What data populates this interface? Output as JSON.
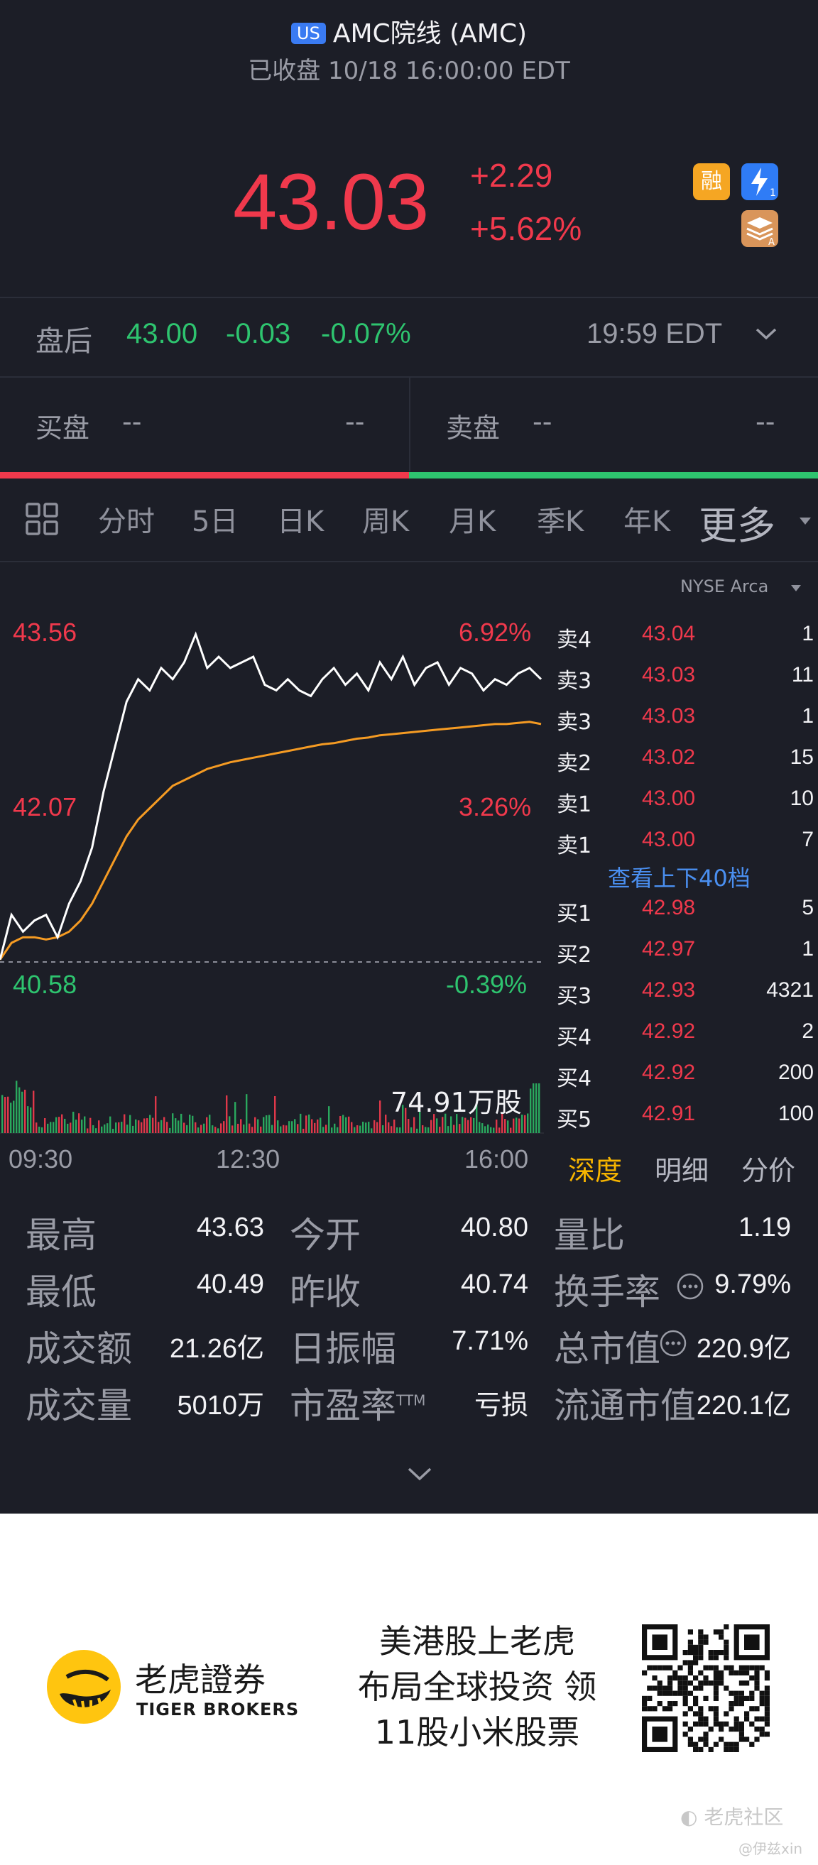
{
  "header": {
    "market_badge": "US",
    "title": "AMC院线 (AMC)",
    "status": "已收盘 10/18 16:00:00 EDT"
  },
  "quote": {
    "price": "43.03",
    "change": "+2.29",
    "change_pct": "+5.62%",
    "icons": [
      {
        "label": "融",
        "name": "margin-icon",
        "color": "#f5a623"
      },
      {
        "label": "⚡",
        "name": "lightning-level1-icon",
        "color": "#2f7cf6"
      },
      {
        "label": "≋",
        "name": "layers-a-icon",
        "color": "#d9955a"
      }
    ]
  },
  "after_hours": {
    "label": "盘后",
    "price": "43.00",
    "change": "-0.03",
    "change_pct": "-0.07%",
    "time": "19:59 EDT"
  },
  "bid_ask": {
    "bid_label": "买盘",
    "bid_left": "--",
    "bid_right": "--",
    "ask_label": "卖盘",
    "ask_left": "--",
    "ask_right": "--",
    "bid_ratio": 0.5
  },
  "tabs": {
    "items": [
      "分时",
      "5日",
      "日K",
      "周K",
      "月K",
      "季K",
      "年K"
    ],
    "active": "分时",
    "more": "更多"
  },
  "chart": {
    "exchange": "NYSE Arca",
    "y_high": "43.56",
    "y_high_pct": "6.92%",
    "y_mid": "42.07",
    "y_mid_pct": "3.26%",
    "y_low": "40.58",
    "y_low_pct": "-0.39%",
    "volume_label": "74.91万股",
    "times": [
      "09:30",
      "12:30",
      "16:00"
    ]
  },
  "chart_data": {
    "type": "line",
    "xlabel": "",
    "ylabel": "",
    "x_ticks": [
      "09:30",
      "12:30",
      "16:00"
    ],
    "ylim": [
      40.58,
      43.56
    ],
    "prev_close": 40.74,
    "series": [
      {
        "values": [
          40.6,
          41.0,
          40.85,
          40.95,
          41.0,
          40.8,
          41.1,
          41.3,
          41.6,
          42.1,
          42.5,
          42.9,
          43.1,
          43.0,
          43.2,
          43.1,
          43.25,
          43.5,
          43.2,
          43.3,
          43.2,
          43.25,
          43.3,
          43.05,
          43.0,
          43.1,
          43.0,
          42.95,
          43.1,
          43.2,
          43.05,
          43.15,
          43.0,
          43.25,
          43.1,
          43.3,
          43.05,
          43.2,
          43.25,
          43.05,
          43.2,
          43.15,
          43.0,
          43.1,
          43.05,
          43.15,
          43.2,
          43.1
        ]
      },
      {
        "values": [
          40.6,
          40.75,
          40.8,
          40.8,
          40.78,
          40.8,
          40.85,
          40.95,
          41.1,
          41.3,
          41.5,
          41.7,
          41.85,
          41.95,
          42.05,
          42.15,
          42.2,
          42.25,
          42.3,
          42.33,
          42.36,
          42.38,
          42.4,
          42.42,
          42.44,
          42.46,
          42.48,
          42.5,
          42.52,
          42.53,
          42.55,
          42.57,
          42.58,
          42.6,
          42.61,
          42.62,
          42.63,
          42.64,
          42.65,
          42.66,
          42.67,
          42.68,
          42.69,
          42.7,
          42.7,
          42.71,
          42.72,
          42.7
        ]
      }
    ]
  },
  "order_book": {
    "asks": [
      {
        "label": "卖4",
        "price": "43.04",
        "qty": "1"
      },
      {
        "label": "卖3",
        "price": "43.03",
        "qty": "11"
      },
      {
        "label": "卖3",
        "price": "43.03",
        "qty": "1"
      },
      {
        "label": "卖2",
        "price": "43.02",
        "qty": "15"
      },
      {
        "label": "卖1",
        "price": "43.00",
        "qty": "10"
      },
      {
        "label": "卖1",
        "price": "43.00",
        "qty": "7"
      }
    ],
    "view_more": "查看上下40档",
    "bids": [
      {
        "label": "买1",
        "price": "42.98",
        "qty": "5"
      },
      {
        "label": "买2",
        "price": "42.97",
        "qty": "1"
      },
      {
        "label": "买3",
        "price": "42.93",
        "qty": "4321"
      },
      {
        "label": "买4",
        "price": "42.92",
        "qty": "2"
      },
      {
        "label": "买4",
        "price": "42.92",
        "qty": "200"
      },
      {
        "label": "买5",
        "price": "42.91",
        "qty": "100"
      }
    ],
    "tabs": [
      "深度",
      "明细",
      "分价"
    ]
  },
  "stats": {
    "high_label": "最高",
    "high": "43.63",
    "low_label": "最低",
    "low": "40.49",
    "amount_label": "成交额",
    "amount": "21.26亿",
    "volume_label": "成交量",
    "volume": "5010万",
    "open_label": "今开",
    "open": "40.80",
    "prev_label": "昨收",
    "prev": "40.74",
    "amp_label": "日振幅",
    "amp": "7.71%",
    "pe_label": "市盈率",
    "pe_sup": "TTM",
    "pe": "亏损",
    "vr_label": "量比",
    "vr": "1.19",
    "turnover_label": "换手率",
    "turnover": "9.79%",
    "mcap_label": "总市值",
    "mcap": "220.9亿",
    "float_label": "流通市值",
    "float": "220.1亿"
  },
  "banner": {
    "brand_cn": "老虎證券",
    "brand_en": "TIGER BROKERS",
    "line1": "美港股上老虎",
    "line2": "布局全球投资 领",
    "line3": "11股小米股票",
    "watermark1": "老虎社区",
    "watermark2": "@伊兹xin"
  }
}
